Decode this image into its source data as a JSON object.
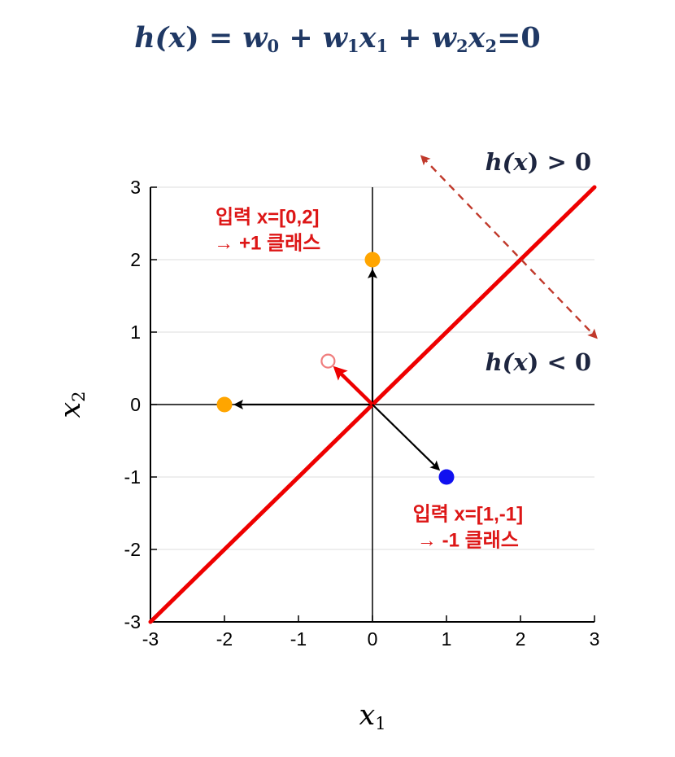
{
  "title": {
    "plain": "h(x) = w₀ + w₁x₁ + w₂x₂=0",
    "color": "#1F3864",
    "parts": [
      {
        "t": "h(",
        "i": true
      },
      {
        "t": "x",
        "i": true,
        "b": true
      },
      {
        "t": ") = ",
        "i": false
      },
      {
        "t": "w",
        "i": true
      },
      {
        "t": "0",
        "sub": true
      },
      {
        "t": " + ",
        "i": false
      },
      {
        "t": "w",
        "i": true
      },
      {
        "t": "1",
        "sub": true
      },
      {
        "t": "x",
        "i": true
      },
      {
        "t": "1",
        "sub": true
      },
      {
        "t": " + ",
        "i": false
      },
      {
        "t": "w",
        "i": true
      },
      {
        "t": "2",
        "sub": true
      },
      {
        "t": "x",
        "i": true
      },
      {
        "t": "2",
        "sub": true
      },
      {
        "t": "=0",
        "i": false
      }
    ]
  },
  "chart_data": {
    "type": "scatter",
    "title": "h(x) = w0 + w1x1 + w2x2 = 0",
    "xlabel": "x₁",
    "ylabel": "x₂",
    "xlabel_parts": [
      {
        "t": "x",
        "i": true
      },
      {
        "t": "1",
        "sub": true
      }
    ],
    "ylabel_parts": [
      {
        "t": "x",
        "i": true
      },
      {
        "t": "2",
        "sub": true
      }
    ],
    "xlim": [
      -3,
      3
    ],
    "ylim": [
      -3,
      3
    ],
    "xticks": [
      -3,
      -2,
      -1,
      0,
      1,
      2,
      3
    ],
    "yticks": [
      -3,
      -2,
      -1,
      0,
      1,
      2,
      3
    ],
    "grid": true,
    "grid_color": "#DCDCDC",
    "axis_color": "#000000",
    "vector_color": "#000000",
    "decision_boundary": {
      "label": "h(x) = 0",
      "from": [
        -3,
        -3
      ],
      "to": [
        3,
        3
      ],
      "color": "#EE0000",
      "width": 5
    },
    "normal_dashed_arrow": {
      "from": [
        0.67,
        3.42
      ],
      "to": [
        3.02,
        0.93
      ],
      "color": "#C0392B",
      "double_headed": true,
      "dashed": true
    },
    "weight_vector": {
      "from": [
        0,
        0
      ],
      "to": [
        -0.6,
        0.6
      ],
      "color": "#EE0000",
      "width": 4.5
    },
    "sample_vectors": [
      {
        "from": [
          0,
          0
        ],
        "to": [
          0,
          2
        ]
      },
      {
        "from": [
          0,
          0
        ],
        "to": [
          -2,
          0
        ]
      },
      {
        "from": [
          0,
          0
        ],
        "to": [
          1,
          -1
        ]
      }
    ],
    "points": [
      {
        "x": 0,
        "y": 2,
        "style": "filled",
        "color": "#FFA500",
        "class": "+1"
      },
      {
        "x": -2,
        "y": 0,
        "style": "filled",
        "color": "#FFA500",
        "class": "+1"
      },
      {
        "x": 1,
        "y": -1,
        "style": "filled",
        "color": "#1010F0",
        "class": "-1"
      },
      {
        "x": -0.6,
        "y": 0.6,
        "style": "open",
        "color": "#F07E7E",
        "class": "w"
      }
    ],
    "region_labels": [
      {
        "plain": "h(x) > 0",
        "x": 2.24,
        "y": 3.35,
        "color": "#1E2640",
        "parts": [
          {
            "t": "h(",
            "i": true
          },
          {
            "t": "x",
            "i": true,
            "b": true
          },
          {
            "t": ") > 0",
            "i": false
          }
        ]
      },
      {
        "plain": "h(x) < 0",
        "x": 2.24,
        "y": 0.58,
        "color": "#1E2640",
        "parts": [
          {
            "t": "h(",
            "i": true
          },
          {
            "t": "x",
            "i": true,
            "b": true
          },
          {
            "t": ") < 0",
            "i": false
          }
        ]
      }
    ],
    "annotations": [
      {
        "line1": "입력 x=[0,2]",
        "line2": "→ +1 클래스",
        "x": -1.42,
        "y": 2.4,
        "color": "#DD1616"
      },
      {
        "line1": "입력 x=[1,-1]",
        "line2": "→ -1 클래스",
        "x": 1.29,
        "y": -1.7,
        "color": "#DD1616"
      }
    ]
  }
}
